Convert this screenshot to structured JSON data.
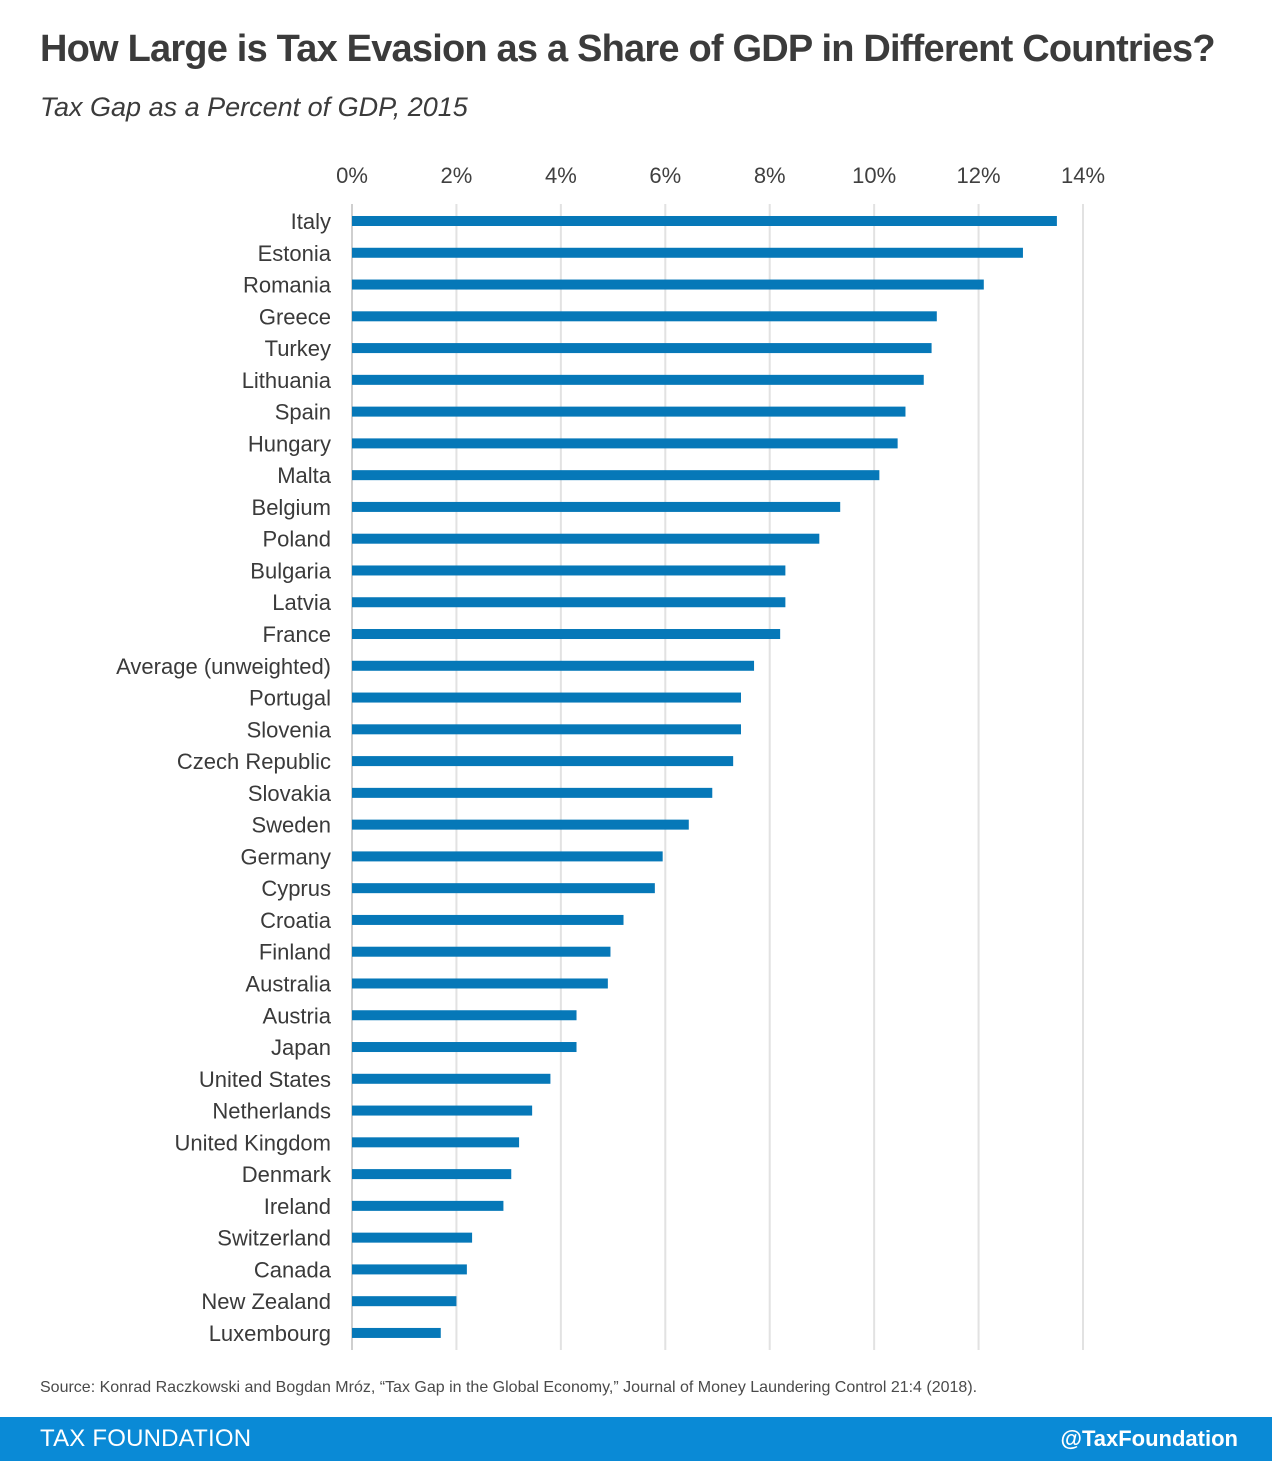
{
  "header": {
    "title": "How Large is Tax Evasion as a Share of GDP in Different Countries?",
    "subtitle": "Tax Gap as a Percent of GDP,  2015"
  },
  "chart_data": {
    "type": "bar",
    "orientation": "horizontal",
    "title": "How Large is Tax Evasion as a Share of GDP in Different Countries?",
    "subtitle": "Tax Gap as a Percent of GDP,  2015",
    "xlabel": "",
    "ylabel": "",
    "xlim": [
      0,
      14
    ],
    "xticks": [
      0,
      2,
      4,
      6,
      8,
      10,
      12,
      14
    ],
    "xtick_labels": [
      "0%",
      "2%",
      "4%",
      "6%",
      "8%",
      "10%",
      "12%",
      "14%"
    ],
    "grid": true,
    "bar_color": "#0678b8",
    "grid_color": "#e2e2e2",
    "categories": [
      "Italy",
      "Estonia",
      "Romania",
      "Greece",
      "Turkey",
      "Lithuania",
      "Spain",
      "Hungary",
      "Malta",
      "Belgium",
      "Poland",
      "Bulgaria",
      "Latvia",
      "France",
      "Average (unweighted)",
      "Portugal",
      "Slovenia",
      "Czech Republic",
      "Slovakia",
      "Sweden",
      "Germany",
      "Cyprus",
      "Croatia",
      "Finland",
      "Australia",
      "Austria",
      "Japan",
      "United States",
      "Netherlands",
      "United Kingdom",
      "Denmark",
      "Ireland",
      "Switzerland",
      "Canada",
      "New Zealand",
      "Luxembourg"
    ],
    "values": [
      13.5,
      12.85,
      12.1,
      11.2,
      11.1,
      10.95,
      10.6,
      10.45,
      10.1,
      9.35,
      8.95,
      8.3,
      8.3,
      8.2,
      7.7,
      7.45,
      7.45,
      7.3,
      6.9,
      6.45,
      5.95,
      5.8,
      5.2,
      4.95,
      4.9,
      4.3,
      4.3,
      3.8,
      3.45,
      3.2,
      3.05,
      2.9,
      2.3,
      2.2,
      2.0,
      1.7
    ]
  },
  "source": "Source: Konrad Raczkowski and Bogdan Mróz, “Tax Gap in the Global Economy,” Journal of Money Laundering Control 21:4  (2018).",
  "footer": {
    "brand": "TAX FOUNDATION",
    "handle": "@TaxFoundation"
  },
  "colors": {
    "bar": "#0678b8",
    "footer_bg": "#0a8ad6",
    "grid": "#e2e2e2"
  }
}
